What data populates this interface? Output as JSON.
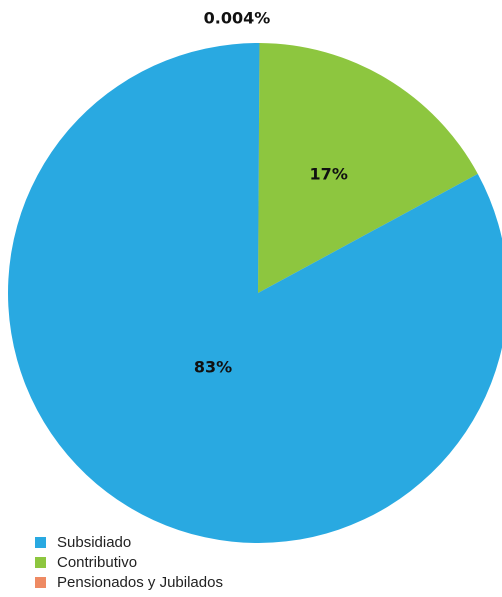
{
  "chart_data": {
    "type": "pie",
    "title": "",
    "categories": [
      "Subsidiado",
      "Contributivo",
      "Pensionados y Jubilados"
    ],
    "values": [
      83,
      17,
      0.004
    ],
    "value_labels": [
      "83%",
      "17%",
      "0.004%"
    ],
    "colors": [
      "#29a9e1",
      "#8dc63f",
      "#ee8a63"
    ],
    "start_angle_deg": 0,
    "direction": "clockwise",
    "legend_position": "bottom-left"
  }
}
